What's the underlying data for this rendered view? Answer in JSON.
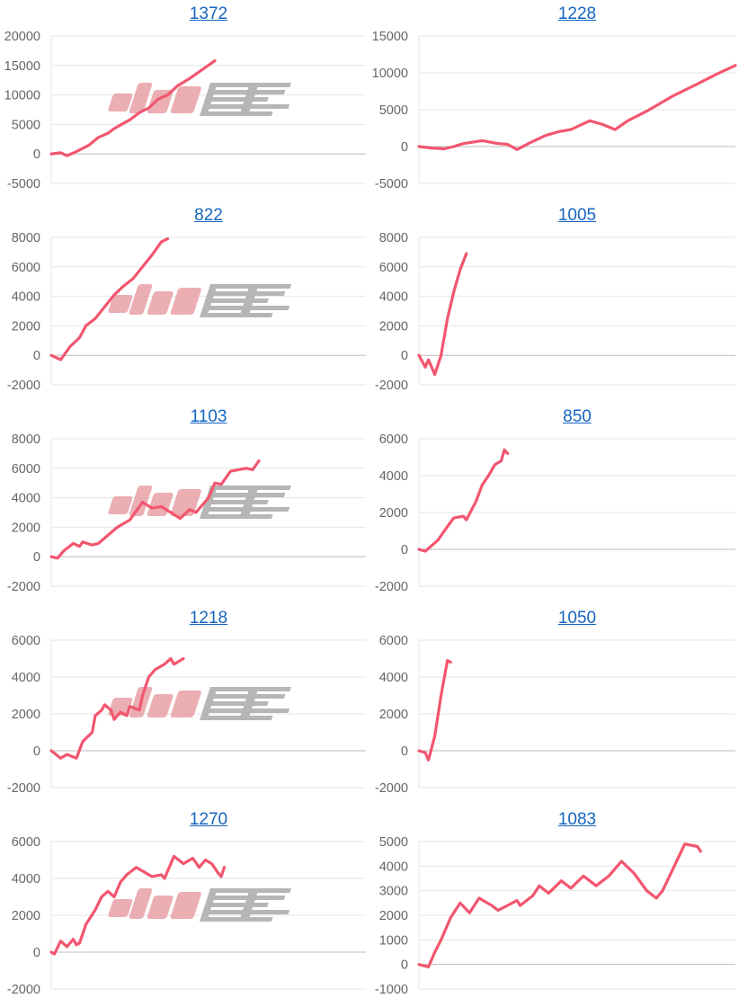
{
  "watermark": {
    "text": "みんレポ",
    "colors": [
      "#e8a0a6",
      "#aaaaaa"
    ]
  },
  "style": {
    "line_color": "#f2566f",
    "grid_color": "#e6e6e6",
    "zero_color": "#bdbdbd",
    "title_color": "#1565c0"
  },
  "chart_data": [
    {
      "type": "line",
      "title": "1372",
      "ylim": [
        -5000,
        20000
      ],
      "yticks": [
        20000,
        15000,
        10000,
        5000,
        0,
        -5000
      ],
      "grid": true,
      "xlim": [
        0,
        100
      ],
      "points": [
        [
          0,
          0
        ],
        [
          3,
          200
        ],
        [
          5,
          -300
        ],
        [
          8,
          400
        ],
        [
          12,
          1500
        ],
        [
          15,
          2800
        ],
        [
          18,
          3500
        ],
        [
          20,
          4300
        ],
        [
          25,
          5800
        ],
        [
          28,
          7000
        ],
        [
          31,
          7800
        ],
        [
          34,
          9300
        ],
        [
          37,
          10000
        ],
        [
          40,
          11500
        ],
        [
          44,
          12800
        ],
        [
          48,
          14300
        ],
        [
          52,
          15800
        ]
      ]
    },
    {
      "type": "line",
      "title": "1228",
      "ylim": [
        -5000,
        15000
      ],
      "yticks": [
        15000,
        10000,
        5000,
        0,
        -5000
      ],
      "grid": true,
      "xlim": [
        0,
        100
      ],
      "points": [
        [
          0,
          0
        ],
        [
          4,
          -200
        ],
        [
          8,
          -300
        ],
        [
          11,
          0
        ],
        [
          14,
          400
        ],
        [
          20,
          800
        ],
        [
          25,
          400
        ],
        [
          28,
          300
        ],
        [
          31,
          -400
        ],
        [
          35,
          500
        ],
        [
          40,
          1500
        ],
        [
          44,
          2000
        ],
        [
          48,
          2300
        ],
        [
          54,
          3500
        ],
        [
          58,
          3000
        ],
        [
          62,
          2300
        ],
        [
          66,
          3500
        ],
        [
          72,
          4800
        ],
        [
          80,
          6800
        ],
        [
          88,
          8500
        ],
        [
          94,
          9800
        ],
        [
          100,
          11000
        ]
      ]
    },
    {
      "type": "line",
      "title": "822",
      "ylim": [
        -2000,
        8000
      ],
      "yticks": [
        8000,
        6000,
        4000,
        2000,
        0,
        -2000
      ],
      "grid": true,
      "xlim": [
        0,
        100
      ],
      "points": [
        [
          0,
          0
        ],
        [
          3,
          -300
        ],
        [
          6,
          600
        ],
        [
          9,
          1200
        ],
        [
          11,
          2000
        ],
        [
          14,
          2500
        ],
        [
          17,
          3300
        ],
        [
          20,
          4100
        ],
        [
          23,
          4700
        ],
        [
          26,
          5200
        ],
        [
          29,
          6000
        ],
        [
          32,
          6800
        ],
        [
          35,
          7700
        ],
        [
          37,
          7900
        ]
      ]
    },
    {
      "type": "line",
      "title": "1005",
      "ylim": [
        -2000,
        8000
      ],
      "yticks": [
        8000,
        6000,
        4000,
        2000,
        0,
        -2000
      ],
      "grid": true,
      "xlim": [
        0,
        100
      ],
      "points": [
        [
          0,
          0
        ],
        [
          2,
          -800
        ],
        [
          3,
          -300
        ],
        [
          5,
          -1300
        ],
        [
          7,
          0
        ],
        [
          9,
          2500
        ],
        [
          11,
          4300
        ],
        [
          13,
          5800
        ],
        [
          15,
          6900
        ]
      ]
    },
    {
      "type": "line",
      "title": "1103",
      "ylim": [
        -2000,
        8000
      ],
      "yticks": [
        8000,
        6000,
        4000,
        2000,
        0,
        -2000
      ],
      "grid": true,
      "xlim": [
        0,
        100
      ],
      "points": [
        [
          0,
          0
        ],
        [
          2,
          -100
        ],
        [
          4,
          400
        ],
        [
          7,
          900
        ],
        [
          9,
          700
        ],
        [
          10,
          1000
        ],
        [
          13,
          800
        ],
        [
          15,
          900
        ],
        [
          21,
          2000
        ],
        [
          25,
          2500
        ],
        [
          29,
          3700
        ],
        [
          32,
          3300
        ],
        [
          35,
          3400
        ],
        [
          41,
          2600
        ],
        [
          44,
          3200
        ],
        [
          46,
          3000
        ],
        [
          50,
          4000
        ],
        [
          52,
          5000
        ],
        [
          54,
          4900
        ],
        [
          57,
          5800
        ],
        [
          62,
          6000
        ],
        [
          64,
          5900
        ],
        [
          66,
          6500
        ]
      ]
    },
    {
      "type": "line",
      "title": "850",
      "ylim": [
        -2000,
        6000
      ],
      "yticks": [
        6000,
        4000,
        2000,
        0,
        -2000
      ],
      "grid": true,
      "xlim": [
        0,
        100
      ],
      "points": [
        [
          0,
          0
        ],
        [
          2,
          -100
        ],
        [
          6,
          500
        ],
        [
          8,
          1000
        ],
        [
          11,
          1700
        ],
        [
          14,
          1800
        ],
        [
          15,
          1600
        ],
        [
          18,
          2600
        ],
        [
          20,
          3500
        ],
        [
          22,
          4000
        ],
        [
          24,
          4600
        ],
        [
          26,
          4800
        ],
        [
          27,
          5400
        ],
        [
          28,
          5200
        ]
      ]
    },
    {
      "type": "line",
      "title": "1218",
      "ylim": [
        -2000,
        6000
      ],
      "yticks": [
        6000,
        4000,
        2000,
        0,
        -2000
      ],
      "grid": true,
      "xlim": [
        0,
        100
      ],
      "points": [
        [
          0,
          0
        ],
        [
          3,
          -400
        ],
        [
          5,
          -200
        ],
        [
          8,
          -400
        ],
        [
          10,
          500
        ],
        [
          13,
          1000
        ],
        [
          14,
          1900
        ],
        [
          16,
          2200
        ],
        [
          17,
          2500
        ],
        [
          19,
          2200
        ],
        [
          20,
          1700
        ],
        [
          22,
          2100
        ],
        [
          24,
          1900
        ],
        [
          25,
          2400
        ],
        [
          28,
          2200
        ],
        [
          29,
          3000
        ],
        [
          31,
          4000
        ],
        [
          33,
          4400
        ],
        [
          36,
          4700
        ],
        [
          38,
          5000
        ],
        [
          39,
          4700
        ],
        [
          42,
          5000
        ]
      ]
    },
    {
      "type": "line",
      "title": "1050",
      "ylim": [
        -2000,
        6000
      ],
      "yticks": [
        6000,
        4000,
        2000,
        0,
        -2000
      ],
      "grid": true,
      "xlim": [
        0,
        100
      ],
      "points": [
        [
          0,
          0
        ],
        [
          2,
          -100
        ],
        [
          3,
          -500
        ],
        [
          5,
          800
        ],
        [
          7,
          3000
        ],
        [
          9,
          4900
        ],
        [
          10,
          4800
        ]
      ]
    },
    {
      "type": "line",
      "title": "1270",
      "ylim": [
        -2000,
        6000
      ],
      "yticks": [
        6000,
        4000,
        2000,
        0,
        -2000
      ],
      "grid": true,
      "xlim": [
        0,
        100
      ],
      "points": [
        [
          0,
          0
        ],
        [
          1,
          -100
        ],
        [
          3,
          600
        ],
        [
          5,
          300
        ],
        [
          7,
          700
        ],
        [
          8,
          400
        ],
        [
          9,
          500
        ],
        [
          11,
          1500
        ],
        [
          14,
          2300
        ],
        [
          16,
          3000
        ],
        [
          18,
          3300
        ],
        [
          20,
          3000
        ],
        [
          22,
          3800
        ],
        [
          24,
          4200
        ],
        [
          27,
          4600
        ],
        [
          29,
          4400
        ],
        [
          32,
          4100
        ],
        [
          35,
          4200
        ],
        [
          36,
          4000
        ],
        [
          39,
          5200
        ],
        [
          42,
          4800
        ],
        [
          45,
          5100
        ],
        [
          47,
          4600
        ],
        [
          49,
          5000
        ],
        [
          51,
          4800
        ],
        [
          53,
          4300
        ],
        [
          54,
          4100
        ],
        [
          55,
          4600
        ]
      ]
    },
    {
      "type": "line",
      "title": "1083",
      "ylim": [
        -1000,
        5000
      ],
      "yticks": [
        5000,
        4000,
        3000,
        2000,
        1000,
        0,
        -1000
      ],
      "grid": true,
      "xlim": [
        0,
        100
      ],
      "points": [
        [
          0,
          0
        ],
        [
          3,
          -100
        ],
        [
          5,
          500
        ],
        [
          7,
          1000
        ],
        [
          10,
          1900
        ],
        [
          13,
          2500
        ],
        [
          16,
          2100
        ],
        [
          19,
          2700
        ],
        [
          23,
          2400
        ],
        [
          25,
          2200
        ],
        [
          31,
          2600
        ],
        [
          32,
          2400
        ],
        [
          36,
          2800
        ],
        [
          38,
          3200
        ],
        [
          41,
          2900
        ],
        [
          45,
          3400
        ],
        [
          48,
          3100
        ],
        [
          52,
          3600
        ],
        [
          56,
          3200
        ],
        [
          60,
          3600
        ],
        [
          64,
          4200
        ],
        [
          68,
          3700
        ],
        [
          72,
          3000
        ],
        [
          75,
          2700
        ],
        [
          77,
          3000
        ],
        [
          84,
          4900
        ],
        [
          88,
          4800
        ],
        [
          89,
          4600
        ]
      ]
    }
  ]
}
